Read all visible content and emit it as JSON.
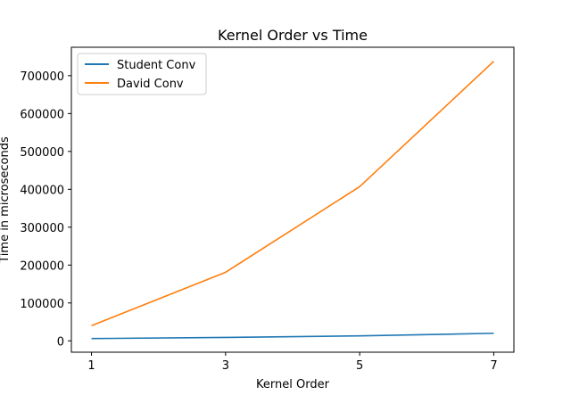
{
  "chart_data": {
    "type": "line",
    "title": "Kernel Order vs Time",
    "xlabel": "Kernel Order",
    "ylabel": "Time in microseconds",
    "x": [
      1,
      3,
      5,
      7
    ],
    "xticks": [
      1,
      3,
      5,
      7
    ],
    "xtick_labels": [
      "1",
      "3",
      "5",
      "7"
    ],
    "yticks": [
      0,
      100000,
      200000,
      300000,
      400000,
      500000,
      600000,
      700000
    ],
    "ytick_labels": [
      "0",
      "100000",
      "200000",
      "300000",
      "400000",
      "500000",
      "600000",
      "700000"
    ],
    "xlim": [
      0.7,
      7.3
    ],
    "ylim": [
      -30000,
      775000
    ],
    "grid": false,
    "legend_position": "top-left",
    "series": [
      {
        "name": "Student Conv",
        "color": "#1f77b4",
        "values": [
          6000,
          9000,
          13000,
          20000
        ]
      },
      {
        "name": "David Conv",
        "color": "#ff7f0e",
        "values": [
          40000,
          181000,
          407000,
          738000
        ]
      }
    ]
  }
}
